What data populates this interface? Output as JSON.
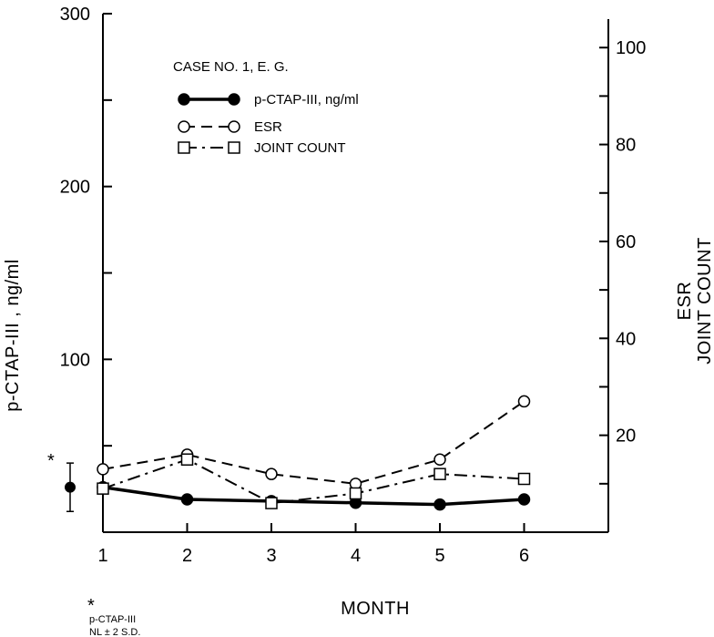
{
  "chart_data": {
    "type": "line",
    "title": "CASE NO. 1, E. G.",
    "xlabel": "MONTH",
    "ylabel_left": "p-CTAP-III , ng/ml",
    "ylabel_right": [
      "ESR",
      "JOINT COUNT"
    ],
    "x": [
      1,
      2,
      3,
      4,
      5,
      6
    ],
    "xticks": [
      "1",
      "2",
      "3",
      "4",
      "5",
      "6"
    ],
    "xlim": [
      1,
      7
    ],
    "ylim_left": [
      0,
      300
    ],
    "yticks_left": [
      "100",
      "200",
      "300"
    ],
    "ylim_right": [
      0,
      107
    ],
    "yticks_right": [
      "20",
      "40",
      "60",
      "80",
      "100"
    ],
    "legend_position": "top-left",
    "series": [
      {
        "name": "p-CTAP-III, ng/ml",
        "axis": "left",
        "style": "solid",
        "marker": "filled-circle",
        "values": [
          26,
          19,
          18,
          17,
          16,
          19
        ]
      },
      {
        "name": "ESR",
        "axis": "right",
        "style": "dashed",
        "marker": "open-circle",
        "values": [
          13,
          16,
          12,
          10,
          15,
          27
        ]
      },
      {
        "name": "JOINT COUNT",
        "axis": "right",
        "style": "dashdot",
        "marker": "open-square",
        "values": [
          9,
          15,
          6,
          8,
          12,
          11
        ]
      }
    ],
    "normal_range": {
      "label": "* p-CTAP-III NL ± 2 S.D.",
      "mean": 26,
      "low": 12,
      "high": 40
    }
  },
  "footnote": {
    "star": "*",
    "line1": "p-CTAP-III",
    "line2": "NL ± 2 S.D."
  },
  "colors": {
    "ink": "#000000",
    "background": "#ffffff"
  }
}
